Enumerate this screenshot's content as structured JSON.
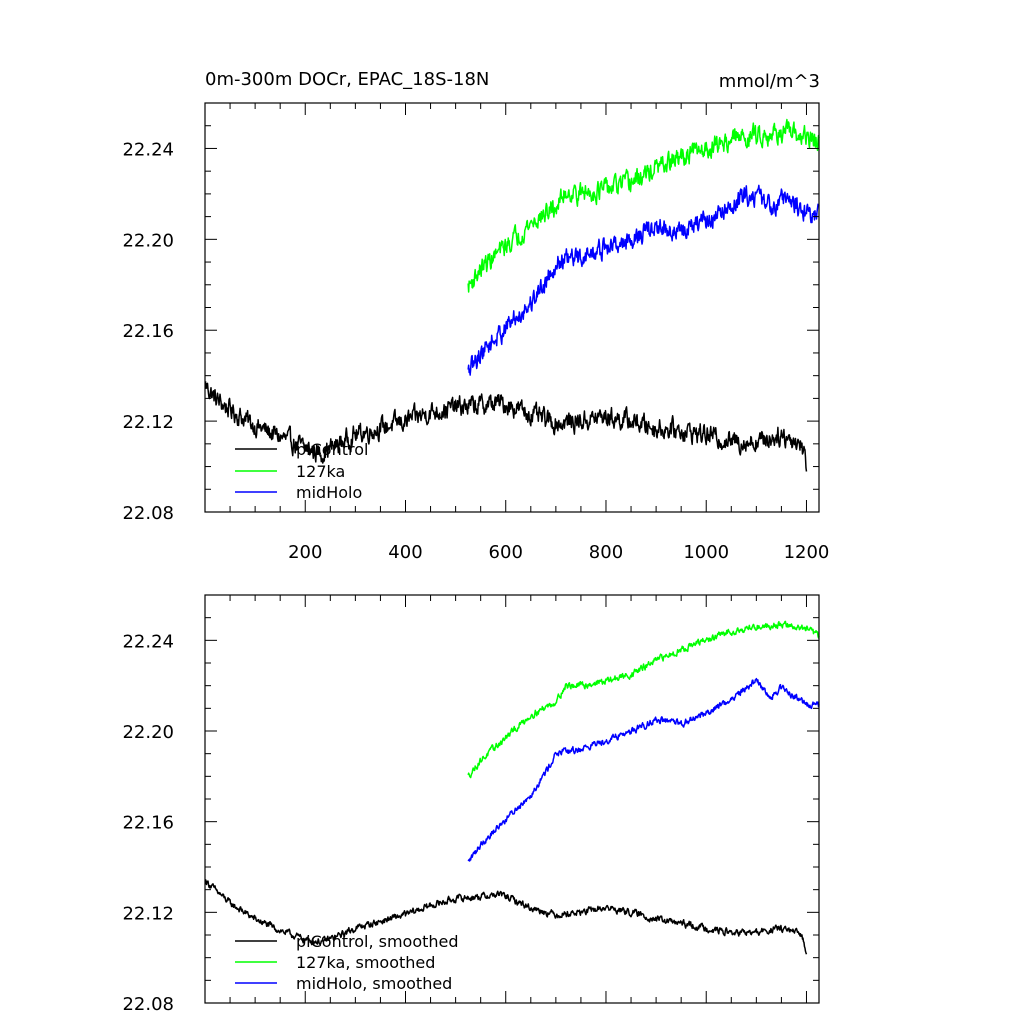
{
  "panels": {
    "top": {
      "title_left": "0m-300m DOCr, EPAC_18S-18N",
      "title_right": "mmol/m^3",
      "legend": [
        "piControl",
        "127ka",
        "midHolo"
      ]
    },
    "bottom": {
      "legend": [
        "piControl, smoothed",
        "127ka, smoothed",
        "midHolo, smoothed"
      ]
    }
  },
  "chart_data": [
    {
      "type": "line",
      "title": "0m-300m DOCr, EPAC_18S-18N",
      "units": "mmol/m^3",
      "xlabel": "",
      "ylabel": "",
      "xlim": [
        0,
        1225
      ],
      "ylim": [
        22.08,
        22.26
      ],
      "xticks": [
        200,
        400,
        600,
        800,
        1000,
        1200
      ],
      "yticks": [
        22.08,
        22.12,
        22.16,
        22.2,
        22.24
      ],
      "legend_position": "bottom-left",
      "noise": 0.0035,
      "series": [
        {
          "name": "piControl",
          "color": "#000000",
          "x": [
            1,
            20,
            50,
            100,
            150,
            200,
            230,
            260,
            300,
            350,
            400,
            450,
            500,
            550,
            590,
            620,
            650,
            700,
            750,
            800,
            850,
            900,
            950,
            1000,
            1050,
            1100,
            1150,
            1190,
            1200
          ],
          "y": [
            22.136,
            22.13,
            22.125,
            22.118,
            22.113,
            22.108,
            22.106,
            22.109,
            22.114,
            22.117,
            22.12,
            22.124,
            22.126,
            22.127,
            22.128,
            22.126,
            22.123,
            22.119,
            22.12,
            22.122,
            22.12,
            22.117,
            22.116,
            22.114,
            22.111,
            22.111,
            22.114,
            22.11,
            22.101
          ]
        },
        {
          "name": "127ka",
          "color": "#00ff00",
          "x": [
            525,
            550,
            600,
            650,
            700,
            720,
            750,
            800,
            850,
            900,
            950,
            1000,
            1050,
            1100,
            1150,
            1200,
            1225
          ],
          "y": [
            22.179,
            22.187,
            22.197,
            22.207,
            22.214,
            22.221,
            22.22,
            22.222,
            22.225,
            22.231,
            22.236,
            22.24,
            22.244,
            22.246,
            22.247,
            22.245,
            22.242
          ]
        },
        {
          "name": "midHolo",
          "color": "#0000ff",
          "x": [
            525,
            550,
            600,
            650,
            680,
            700,
            750,
            800,
            850,
            900,
            950,
            1000,
            1050,
            1080,
            1100,
            1130,
            1150,
            1200,
            1225
          ],
          "y": [
            22.141,
            22.15,
            22.161,
            22.172,
            22.182,
            22.19,
            22.192,
            22.196,
            22.2,
            22.205,
            22.203,
            22.208,
            22.214,
            22.219,
            22.22,
            22.214,
            22.219,
            22.212,
            22.211
          ]
        }
      ]
    },
    {
      "type": "line",
      "title": "",
      "xlabel": "",
      "ylabel": "",
      "xlim": [
        0,
        1225
      ],
      "ylim": [
        22.08,
        22.26
      ],
      "xticks": [
        200,
        400,
        600,
        800,
        1000,
        1200
      ],
      "yticks": [
        22.08,
        22.12,
        22.16,
        22.2,
        22.24
      ],
      "legend_position": "bottom-left",
      "noise": 0.0012,
      "series": [
        {
          "name": "piControl, smoothed",
          "color": "#000000",
          "x": [
            1,
            20,
            50,
            100,
            150,
            200,
            230,
            260,
            300,
            350,
            400,
            450,
            500,
            550,
            590,
            620,
            650,
            700,
            750,
            800,
            850,
            900,
            950,
            1000,
            1050,
            1100,
            1150,
            1190,
            1200
          ],
          "y": [
            22.134,
            22.13,
            22.124,
            22.117,
            22.112,
            22.108,
            22.107,
            22.109,
            22.113,
            22.116,
            22.119,
            22.123,
            22.126,
            22.127,
            22.128,
            22.125,
            22.122,
            22.119,
            22.12,
            22.122,
            22.12,
            22.117,
            22.115,
            22.113,
            22.111,
            22.111,
            22.113,
            22.11,
            22.103
          ]
        },
        {
          "name": "127ka, smoothed",
          "color": "#00ff00",
          "x": [
            525,
            550,
            600,
            650,
            700,
            720,
            750,
            800,
            850,
            900,
            950,
            1000,
            1050,
            1100,
            1150,
            1200,
            1225
          ],
          "y": [
            22.18,
            22.187,
            22.197,
            22.207,
            22.213,
            22.22,
            22.22,
            22.222,
            22.225,
            22.231,
            22.236,
            22.24,
            22.244,
            22.246,
            22.247,
            22.245,
            22.242
          ]
        },
        {
          "name": "midHolo, smoothed",
          "color": "#0000ff",
          "x": [
            525,
            550,
            600,
            650,
            680,
            700,
            750,
            800,
            850,
            900,
            950,
            1000,
            1050,
            1080,
            1100,
            1130,
            1150,
            1200,
            1225
          ],
          "y": [
            22.142,
            22.15,
            22.161,
            22.172,
            22.182,
            22.19,
            22.192,
            22.196,
            22.2,
            22.205,
            22.203,
            22.208,
            22.214,
            22.219,
            22.222,
            22.215,
            22.219,
            22.212,
            22.211
          ]
        }
      ]
    }
  ]
}
